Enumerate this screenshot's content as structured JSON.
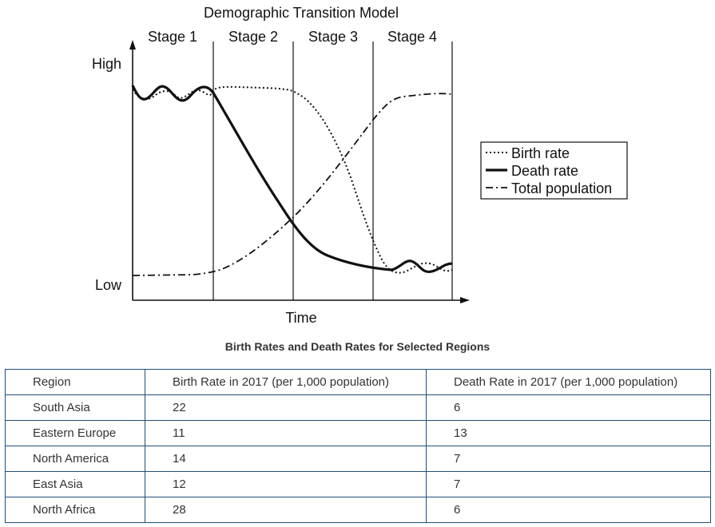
{
  "diagram": {
    "title": "Demographic Transition Model",
    "stages": [
      "Stage 1",
      "Stage 2",
      "Stage 3",
      "Stage 4"
    ],
    "y_high_label": "High",
    "y_low_label": "Low",
    "x_label": "Time",
    "legend": {
      "birth_rate": "Birth rate",
      "death_rate": "Death rate",
      "total_population": "Total population"
    }
  },
  "table": {
    "title": "Birth Rates and Death Rates for Selected Regions",
    "headers": [
      "Region",
      "Birth Rate in 2017 (per 1,000 population)",
      "Death Rate in 2017 (per 1,000 population)"
    ],
    "rows": [
      [
        "South Asia",
        "22",
        "6"
      ],
      [
        "Eastern Europe",
        "11",
        "13"
      ],
      [
        "North America",
        "14",
        "7"
      ],
      [
        "East Asia",
        "12",
        "7"
      ],
      [
        "North Africa",
        "28",
        "6"
      ]
    ]
  }
}
